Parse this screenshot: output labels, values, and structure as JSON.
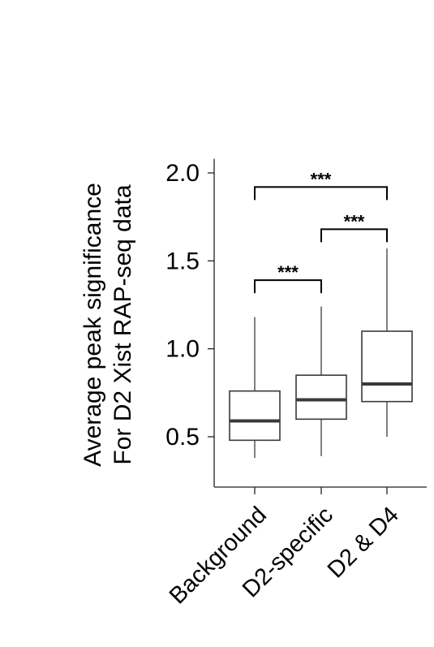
{
  "chart_data": {
    "type": "box",
    "title": "",
    "ylabel_lines": [
      "Average peak significance",
      "For D2 Xist RAP-seq data"
    ],
    "xlabel": "",
    "ylim": [
      0.25,
      2.08
    ],
    "yticks": [
      0.5,
      1.0,
      1.5,
      2.0
    ],
    "ytick_labels": [
      "0.5",
      "1.0",
      "1.5",
      "2.0"
    ],
    "categories": [
      "Background",
      "D2-specific",
      "D2 & D4"
    ],
    "boxes": [
      {
        "min": 0.38,
        "q1": 0.48,
        "median": 0.59,
        "q3": 0.76,
        "max": 1.18
      },
      {
        "min": 0.39,
        "q1": 0.6,
        "median": 0.71,
        "q3": 0.85,
        "max": 1.24
      },
      {
        "min": 0.5,
        "q1": 0.7,
        "median": 0.8,
        "q3": 1.1,
        "max": 1.57
      }
    ],
    "significance": [
      {
        "from": 0,
        "to": 1,
        "label": "***",
        "y": 1.39
      },
      {
        "from": 1,
        "to": 2,
        "label": "***",
        "y": 1.68
      },
      {
        "from": 0,
        "to": 2,
        "label": "***",
        "y": 1.92
      }
    ],
    "grid": false,
    "legend": "none"
  }
}
